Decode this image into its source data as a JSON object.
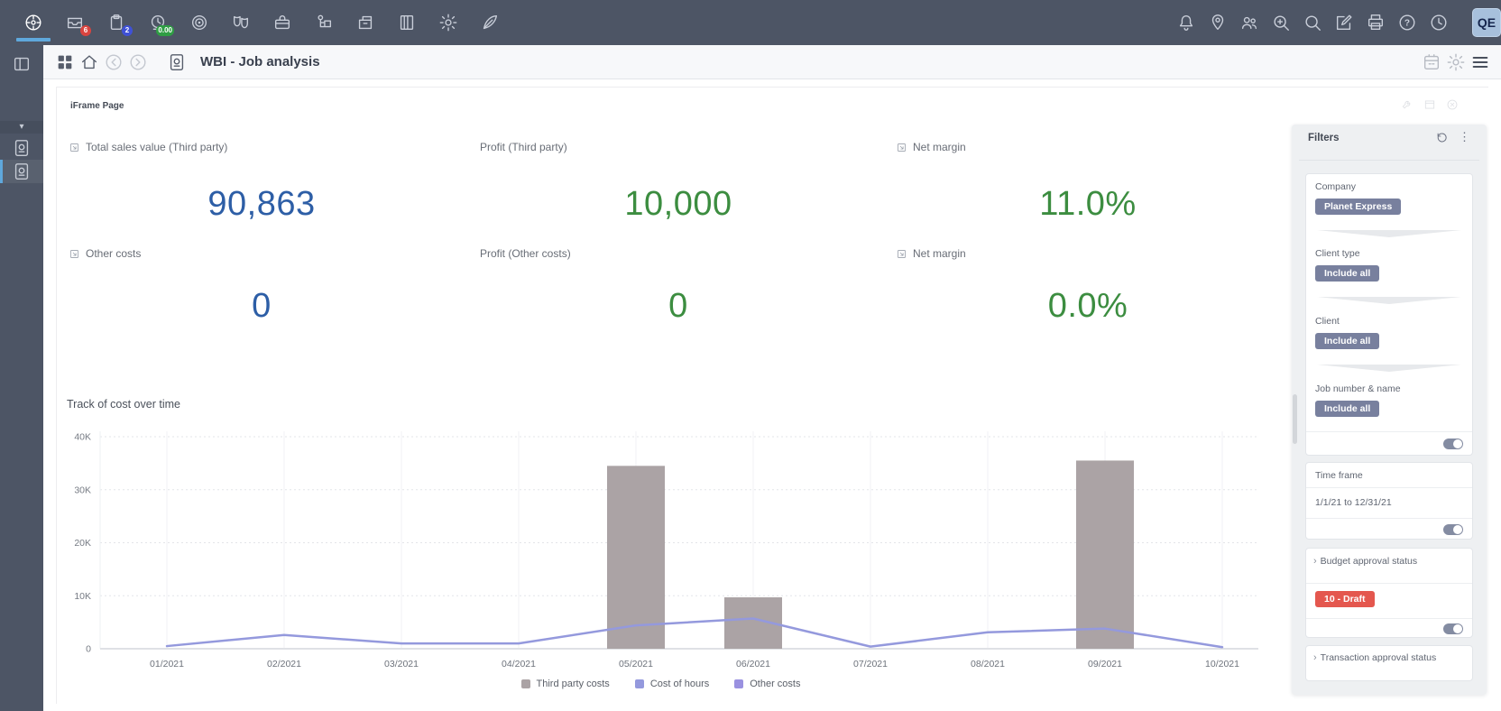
{
  "topbar": {
    "icons_left": [
      {
        "name": "apps-compass",
        "active": true
      },
      {
        "name": "inbox",
        "badge": "6",
        "badge_color": "#d9443f"
      },
      {
        "name": "tasks-clipboard",
        "badge": "2",
        "badge_color": "#3f51d6"
      },
      {
        "name": "time-tracking",
        "badge": "0.00",
        "badge_color": "#2f9e44"
      },
      {
        "name": "target"
      },
      {
        "name": "production-masks"
      },
      {
        "name": "toolbox"
      },
      {
        "name": "hr-trolley"
      },
      {
        "name": "workplace-cabinet"
      },
      {
        "name": "ledger-book"
      },
      {
        "name": "settings-gear"
      },
      {
        "name": "quill-pen"
      }
    ],
    "icons_right": [
      {
        "name": "notifications-bell"
      },
      {
        "name": "location-pin"
      },
      {
        "name": "user-group"
      },
      {
        "name": "zoom-in"
      },
      {
        "name": "search"
      },
      {
        "name": "compose-edit"
      },
      {
        "name": "printer"
      },
      {
        "name": "help"
      },
      {
        "name": "history-clock",
        "gap": true
      }
    ],
    "avatar": "QE"
  },
  "toolbar": {
    "title": "WBI - Job analysis"
  },
  "page": {
    "header_label": "iFrame Page"
  },
  "kpis": [
    {
      "label": "Total sales value (Third party)",
      "value": "90,863",
      "color": "#2d5ea6"
    },
    {
      "label": "Profit (Third party)",
      "value": "10,000",
      "color": "#3c8d40"
    },
    {
      "label": "Net margin",
      "value": "11.0%",
      "color": "#3c8d40"
    },
    {
      "label": "Other costs",
      "value": "0",
      "color": "#2d5ea6"
    },
    {
      "label": "Profit (Other costs)",
      "value": "0",
      "color": "#3c8d40"
    },
    {
      "label": "Net margin",
      "value": "0.0%",
      "color": "#3c8d40"
    }
  ],
  "chart_data": {
    "type": "bar+line",
    "title": "Track of cost over time",
    "categories": [
      "01/2021",
      "02/2021",
      "03/2021",
      "04/2021",
      "05/2021",
      "06/2021",
      "07/2021",
      "08/2021",
      "09/2021",
      "10/2021"
    ],
    "series": [
      {
        "name": "Third party costs",
        "type": "bar",
        "color": "#aba3a5",
        "values": [
          0,
          0,
          0,
          0,
          34500,
          9700,
          0,
          0,
          35500,
          0
        ]
      },
      {
        "name": "Cost of hours",
        "type": "line",
        "color": "#9499dd",
        "values": [
          500,
          2600,
          1000,
          1000,
          4400,
          5700,
          400,
          3100,
          3800,
          300
        ]
      },
      {
        "name": "Other costs",
        "type": "line",
        "color": "#9a91e0",
        "values": [
          0,
          0,
          0,
          0,
          0,
          0,
          0,
          0,
          0,
          0
        ]
      }
    ],
    "ylim": [
      0,
      40000
    ],
    "yticks": [
      {
        "value": 0,
        "label": "0"
      },
      {
        "value": 10000,
        "label": "10K"
      },
      {
        "value": 20000,
        "label": "20K"
      },
      {
        "value": 30000,
        "label": "30K"
      },
      {
        "value": 40000,
        "label": "40K"
      }
    ],
    "grid": true,
    "legend_position": "bottom"
  },
  "filters": {
    "title": "Filters",
    "chip_color": "#78809e",
    "groups": [
      {
        "label": "Company",
        "chip": "Planet Express"
      },
      {
        "label": "Client type",
        "chip": "Include all"
      },
      {
        "label": "Client",
        "chip": "Include all"
      },
      {
        "label": "Job number & name",
        "chip": "Include all"
      }
    ],
    "time_frame": {
      "label": "Time frame",
      "value": "1/1/21 to 12/31/21"
    },
    "budget": {
      "label": "Budget approval status",
      "chip": "10 - Draft",
      "chip_color": "#e4574e"
    },
    "transaction": {
      "label": "Transaction approval status"
    }
  }
}
